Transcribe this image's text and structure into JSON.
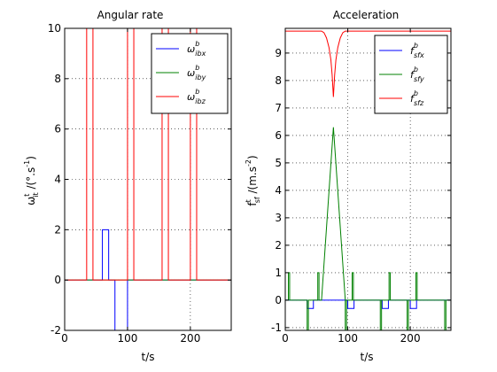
{
  "chart_data": [
    {
      "type": "line",
      "title": "Angular rate",
      "xlabel": "t/s",
      "ylabel": {
        "base": "ω",
        "sup": "t",
        "sub": "it",
        "rest": " /(°.s",
        "rest_sup": "-1",
        "rest_end": ")"
      },
      "xlim": [
        0,
        265
      ],
      "ylim": [
        -2,
        10
      ],
      "xticks": [
        0,
        100,
        200
      ],
      "xtick_labels": [
        "0",
        "100",
        "200"
      ],
      "yticks": [
        -2,
        0,
        2,
        4,
        6,
        8,
        10
      ],
      "ytick_labels": [
        "-2",
        "0",
        "2",
        "4",
        "6",
        "8",
        "10"
      ],
      "grid": true,
      "legend_position": "top-right",
      "series": [
        {
          "name": "ω^b_ibx",
          "legend": {
            "base": "ω",
            "sup": "b",
            "sub": "ibx"
          },
          "color": "#0000ff",
          "x": [
            0,
            60,
            60,
            70,
            70,
            80,
            80,
            100,
            100,
            265
          ],
          "y": [
            0,
            0,
            2,
            2,
            0,
            0,
            -2,
            -2,
            0,
            0
          ]
        },
        {
          "name": "ω^b_iby",
          "legend": {
            "base": "ω",
            "sup": "b",
            "sub": "iby"
          },
          "color": "#008000",
          "x": [
            0,
            265
          ],
          "y": [
            0,
            0
          ]
        },
        {
          "name": "ω^b_ibz",
          "legend": {
            "base": "ω",
            "sup": "b",
            "sub": "ibz"
          },
          "color": "#ff0000",
          "x": [
            0,
            35,
            35,
            45,
            45,
            100,
            100,
            110,
            110,
            155,
            155,
            165,
            165,
            200,
            200,
            210,
            210,
            265
          ],
          "y": [
            0,
            0,
            10,
            10,
            0,
            0,
            10,
            10,
            0,
            0,
            10,
            10,
            0,
            0,
            10,
            10,
            0,
            0
          ]
        }
      ]
    },
    {
      "type": "line",
      "title": "Acceleration",
      "xlabel": "t/s",
      "ylabel": {
        "base": "f",
        "sup": "t",
        "sub": "sf",
        "rest": " /(m.s",
        "rest_sup": "-2",
        "rest_end": ")"
      },
      "xlim": [
        0,
        265
      ],
      "ylim": [
        -1.1,
        9.9
      ],
      "xticks": [
        0,
        100,
        200
      ],
      "xtick_labels": [
        "0",
        "100",
        "200"
      ],
      "yticks": [
        -1,
        0,
        1,
        2,
        3,
        4,
        5,
        6,
        7,
        8,
        9
      ],
      "ytick_labels": [
        "-1",
        "0",
        "1",
        "2",
        "3",
        "4",
        "5",
        "6",
        "7",
        "8",
        "9"
      ],
      "grid": true,
      "legend_position": "top-right",
      "series": [
        {
          "name": "f^b_sfx",
          "legend": {
            "base": "f",
            "sup": "b",
            "sub": "sfx"
          },
          "color": "#0000ff",
          "x": [
            0,
            35,
            35,
            45,
            45,
            100,
            100,
            110,
            110,
            155,
            155,
            165,
            165,
            200,
            200,
            210,
            210,
            265
          ],
          "y": [
            0,
            0,
            -0.3,
            -0.3,
            0,
            0,
            -0.3,
            -0.3,
            0,
            0,
            -0.3,
            -0.3,
            0,
            0,
            -0.3,
            -0.3,
            0,
            0
          ]
        },
        {
          "name": "f^b_sfy",
          "legend": {
            "base": "f",
            "sup": "b",
            "sub": "sfy"
          },
          "color": "#008000",
          "x": [
            0,
            5,
            5,
            7,
            7,
            35,
            35,
            37,
            37,
            52,
            52,
            54,
            54,
            58,
            77,
            96,
            96,
            98,
            98,
            107,
            107,
            109,
            109,
            152,
            152,
            154,
            154,
            166,
            166,
            168,
            168,
            195,
            195,
            197,
            197,
            209,
            209,
            211,
            211,
            255,
            255,
            257,
            257,
            265
          ],
          "y": [
            0,
            0,
            1,
            1,
            0,
            0,
            -1.1,
            -1.1,
            0,
            0,
            1,
            1,
            0,
            0,
            6.3,
            0,
            -1.1,
            -1.1,
            0,
            0,
            1,
            1,
            0,
            0,
            -1.1,
            -1.1,
            0,
            0,
            1,
            1,
            0,
            0,
            -1.1,
            -1.1,
            0,
            0,
            1,
            1,
            0,
            0,
            -1.1,
            -1.1,
            0,
            0
          ]
        },
        {
          "name": "f^b_sfz",
          "legend": {
            "base": "f",
            "sup": "b",
            "sub": "sfz"
          },
          "color": "#ff0000",
          "x": [
            0,
            58,
            62,
            66,
            70,
            73,
            75,
            77,
            79,
            81,
            84,
            88,
            92,
            96,
            265
          ],
          "y": [
            9.8,
            9.8,
            9.74,
            9.55,
            9.2,
            8.75,
            8.2,
            7.4,
            8.2,
            8.75,
            9.2,
            9.55,
            9.74,
            9.8,
            9.8
          ]
        }
      ]
    }
  ]
}
